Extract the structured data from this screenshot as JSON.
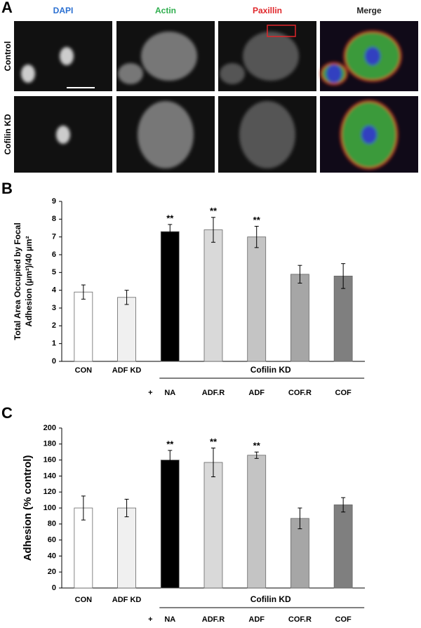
{
  "panel_a": {
    "label": "A",
    "columns": [
      {
        "text": "DAPI",
        "color": "#2a6fd1"
      },
      {
        "text": "Actin",
        "color": "#2fae4e"
      },
      {
        "text": "Paxillin",
        "color": "#e0262a"
      },
      {
        "text": "Merge",
        "color": "#222222"
      }
    ],
    "rows": [
      "Control",
      "Cofilin KD"
    ]
  },
  "chart_data": [
    {
      "type": "bar",
      "panel": "B",
      "ylabel": [
        "Total Area Occupied by Focal",
        "Adhesion (µm²)/40 µm²"
      ],
      "categories": [
        "CON",
        "ADF KD",
        "NA",
        "ADF.R",
        "ADF",
        "COF.R",
        "COF"
      ],
      "values": [
        3.9,
        3.6,
        7.3,
        7.4,
        7.0,
        4.9,
        4.8
      ],
      "errors": [
        0.4,
        0.4,
        0.4,
        0.7,
        0.6,
        0.5,
        0.7
      ],
      "colors": [
        "#ffffff",
        "#f0f0f0",
        "#000000",
        "#d9d9d9",
        "#c4c4c4",
        "#a6a6a6",
        "#7f7f7f"
      ],
      "annotations": [
        {
          "text": "**",
          "category": "NA"
        },
        {
          "text": "**",
          "category": "ADF.R"
        },
        {
          "text": "**",
          "category": "ADF"
        }
      ],
      "group": {
        "label": "Cofilin KD",
        "prefix": "+",
        "members": [
          "NA",
          "ADF.R",
          "ADF",
          "COF.R",
          "COF"
        ]
      },
      "ylim": [
        0,
        9
      ],
      "yticks": [
        0,
        1,
        2,
        3,
        4,
        5,
        6,
        7,
        8,
        9
      ]
    },
    {
      "type": "bar",
      "panel": "C",
      "ylabel": [
        "Adhesion (% control)"
      ],
      "categories": [
        "CON",
        "ADF KD",
        "NA",
        "ADF.R",
        "ADF",
        "COF.R",
        "COF"
      ],
      "values": [
        100,
        100,
        160,
        157,
        166,
        87,
        104
      ],
      "errors": [
        15,
        11,
        12,
        18,
        4,
        13,
        9
      ],
      "colors": [
        "#ffffff",
        "#f0f0f0",
        "#000000",
        "#d9d9d9",
        "#c4c4c4",
        "#a6a6a6",
        "#7f7f7f"
      ],
      "annotations": [
        {
          "text": "**",
          "category": "NA"
        },
        {
          "text": "**",
          "category": "ADF.R"
        },
        {
          "text": "**",
          "category": "ADF"
        }
      ],
      "group": {
        "label": "Cofilin KD",
        "prefix": "+",
        "members": [
          "NA",
          "ADF.R",
          "ADF",
          "COF.R",
          "COF"
        ]
      },
      "ylim": [
        0,
        200
      ],
      "yticks": [
        0,
        20,
        40,
        60,
        80,
        100,
        120,
        140,
        160,
        180,
        200
      ]
    }
  ]
}
